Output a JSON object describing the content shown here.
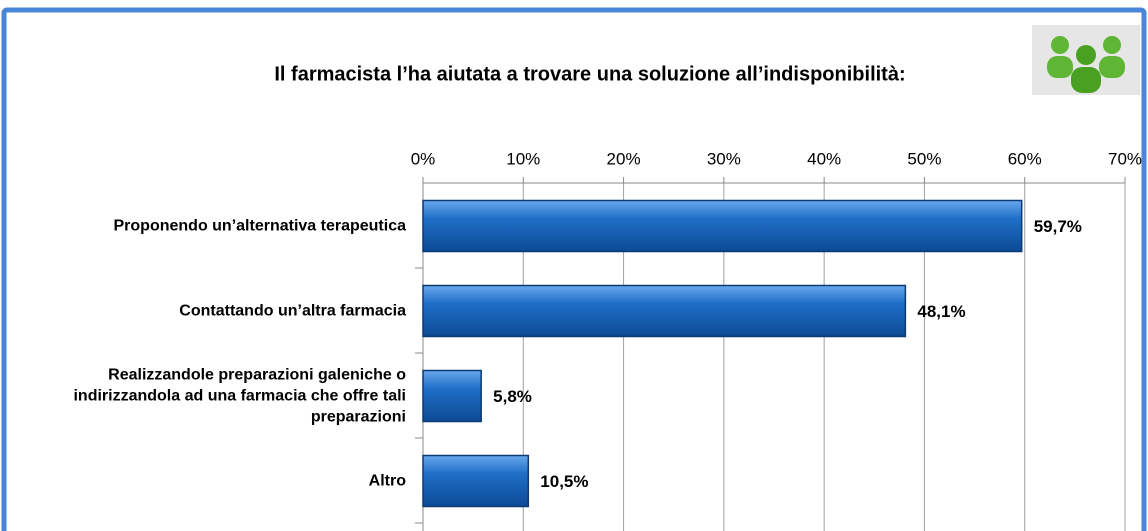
{
  "chart_data": {
    "type": "bar",
    "orientation": "horizontal",
    "title": "Il farmacista l’ha aiutata a trovare una soluzione all’indisponibilità:",
    "categories": [
      "Proponendo un’alternativa terapeutica",
      "Contattando un’altra farmacia",
      "Realizzandole preparazioni galeniche o indirizzandola ad una farmacia che offre tali preparazioni",
      "Altro"
    ],
    "values": [
      59.7,
      48.1,
      5.8,
      10.5
    ],
    "value_labels": [
      "59,7%",
      "48,1%",
      "5,8%",
      "10,5%"
    ],
    "color": "#1f6fc8",
    "xlim": [
      0,
      70
    ],
    "xticks": [
      {
        "value": 0,
        "label": "0%"
      },
      {
        "value": 10,
        "label": "10%"
      },
      {
        "value": 20,
        "label": "20%"
      },
      {
        "value": 30,
        "label": "30%"
      },
      {
        "value": 40,
        "label": "40%"
      },
      {
        "value": 50,
        "label": "50%"
      },
      {
        "value": 60,
        "label": "60%"
      },
      {
        "value": 70,
        "label": "70%"
      }
    ],
    "grid": true
  }
}
